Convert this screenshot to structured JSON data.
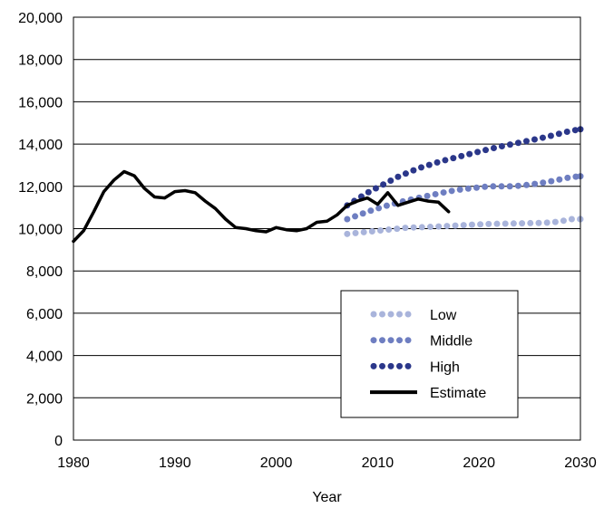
{
  "chart_data": {
    "type": "line",
    "title": "",
    "xlabel": "Year",
    "ylabel": "",
    "xlim": [
      1980,
      2030
    ],
    "ylim": [
      0,
      20000
    ],
    "x_ticks": [
      "1980",
      "1990",
      "2000",
      "2010",
      "2020",
      "2030"
    ],
    "y_ticks": [
      "0",
      "2,000",
      "4,000",
      "6,000",
      "8,000",
      "10,000",
      "12,000",
      "14,000",
      "16,000",
      "18,000",
      "20,000"
    ],
    "grid": "horizontal",
    "legend_position": "bottom-right",
    "series": [
      {
        "name": "Low",
        "style": "dotted",
        "color": "#a9b4db",
        "x": [
          2007,
          2008,
          2009,
          2010,
          2011,
          2012,
          2013,
          2014,
          2015,
          2016,
          2017,
          2018,
          2019,
          2020,
          2021,
          2022,
          2023,
          2024,
          2025,
          2026,
          2027,
          2028,
          2029,
          2030
        ],
        "y": [
          9750,
          9800,
          9850,
          9900,
          9950,
          10000,
          10050,
          10060,
          10080,
          10100,
          10130,
          10150,
          10180,
          10200,
          10220,
          10230,
          10240,
          10250,
          10260,
          10270,
          10290,
          10340,
          10450,
          10450
        ]
      },
      {
        "name": "Middle",
        "style": "dotted",
        "color": "#6e7ec1",
        "x": [
          2007,
          2008,
          2009,
          2010,
          2011,
          2012,
          2013,
          2014,
          2015,
          2016,
          2017,
          2018,
          2019,
          2020,
          2021,
          2022,
          2023,
          2024,
          2025,
          2026,
          2027,
          2028,
          2029,
          2030
        ],
        "y": [
          10450,
          10620,
          10800,
          10950,
          11100,
          11230,
          11350,
          11450,
          11560,
          11660,
          11760,
          11840,
          11900,
          11950,
          12000,
          12000,
          12000,
          12030,
          12080,
          12150,
          12230,
          12330,
          12430,
          12480
        ]
      },
      {
        "name": "High",
        "style": "dotted",
        "color": "#2b378a",
        "x": [
          2007,
          2008,
          2009,
          2010,
          2011,
          2012,
          2013,
          2014,
          2015,
          2016,
          2017,
          2018,
          2019,
          2020,
          2021,
          2022,
          2023,
          2024,
          2025,
          2026,
          2027,
          2028,
          2029,
          2030
        ],
        "y": [
          11100,
          11400,
          11700,
          11950,
          12200,
          12450,
          12650,
          12850,
          13000,
          13150,
          13280,
          13400,
          13520,
          13640,
          13760,
          13870,
          13970,
          14070,
          14170,
          14270,
          14380,
          14500,
          14620,
          14700
        ]
      },
      {
        "name": "Estimate",
        "style": "solid",
        "color": "#000000",
        "x": [
          1980,
          1981,
          1982,
          1983,
          1984,
          1985,
          1986,
          1987,
          1988,
          1989,
          1990,
          1991,
          1992,
          1993,
          1994,
          1995,
          1996,
          1997,
          1998,
          1999,
          2000,
          2001,
          2002,
          2003,
          2004,
          2005,
          2006,
          2007,
          2008,
          2009,
          2010,
          2011,
          2012,
          2013,
          2014,
          2015,
          2016,
          2017
        ],
        "y": [
          9400,
          9900,
          10800,
          11750,
          12300,
          12700,
          12500,
          11900,
          11500,
          11450,
          11750,
          11800,
          11700,
          11300,
          10950,
          10450,
          10050,
          10000,
          9900,
          9850,
          10050,
          9950,
          9900,
          10000,
          10300,
          10350,
          10650,
          11100,
          11300,
          11450,
          11150,
          11700,
          11100,
          11250,
          11400,
          11300,
          11250,
          10800
        ]
      }
    ]
  }
}
